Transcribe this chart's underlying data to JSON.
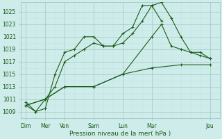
{
  "background_color": "#ceecea",
  "grid_color_major": "#aaccc8",
  "grid_color_minor": "#c4e4e0",
  "line_color": "#1a5c1a",
  "marker_color": "#1a5c1a",
  "ylabel_values": [
    1009,
    1011,
    1013,
    1015,
    1017,
    1019,
    1021,
    1023,
    1025
  ],
  "xlabel_major_labels": [
    "Dim",
    "Mer",
    "Ven",
    "Sam",
    "Lun",
    "Mar",
    "Jeu"
  ],
  "xlabel_major_positions": [
    0,
    2,
    4,
    7,
    10,
    13,
    19
  ],
  "x_label": "Pression niveau de la mer( hPa )",
  "ylim": [
    1008.0,
    1026.5
  ],
  "xlim": [
    -0.5,
    20.0
  ],
  "lines": [
    {
      "x": [
        0,
        1,
        2,
        3,
        4,
        5,
        6,
        7,
        8,
        9,
        10,
        11,
        12,
        13,
        14
      ],
      "y": [
        1010.5,
        1009.0,
        1009.5,
        1015.0,
        1018.5,
        1019.0,
        1021.0,
        1021.0,
        1019.5,
        1019.5,
        1021.5,
        1022.5,
        1026.0,
        1026.0,
        1023.5
      ]
    },
    {
      "x": [
        0,
        1,
        2,
        3,
        4,
        5,
        6,
        7,
        8,
        9,
        10,
        11,
        12,
        13,
        14,
        15,
        16,
        17,
        18,
        19
      ],
      "y": [
        1010.0,
        1009.0,
        1011.0,
        1013.0,
        1017.0,
        1018.0,
        1019.0,
        1020.0,
        1019.5,
        1019.5,
        1020.0,
        1021.5,
        1023.5,
        1026.0,
        1026.5,
        1024.0,
        1021.0,
        1018.5,
        1018.0,
        1017.5
      ]
    },
    {
      "x": [
        0,
        2,
        4,
        7,
        10,
        13,
        14,
        15,
        16,
        17,
        18,
        19
      ],
      "y": [
        1010.0,
        1011.0,
        1013.0,
        1013.0,
        1015.0,
        1021.0,
        1023.0,
        1019.5,
        1019.0,
        1018.5,
        1018.5,
        1017.5
      ]
    },
    {
      "x": [
        0,
        2,
        4,
        7,
        10,
        13,
        16,
        19
      ],
      "y": [
        1010.0,
        1011.0,
        1013.0,
        1013.0,
        1015.0,
        1016.0,
        1016.5,
        1016.5
      ]
    }
  ]
}
